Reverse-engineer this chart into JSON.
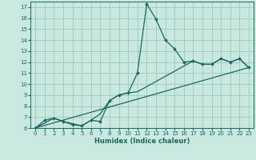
{
  "xlabel": "Humidex (Indice chaleur)",
  "bg_color": "#c8e8e0",
  "grid_color": "#a0c8c0",
  "line_color": "#1a6860",
  "xlim": [
    -0.5,
    23.5
  ],
  "ylim": [
    6,
    17.5
  ],
  "xticks": [
    0,
    1,
    2,
    3,
    4,
    5,
    6,
    7,
    8,
    9,
    10,
    11,
    12,
    13,
    14,
    15,
    16,
    17,
    18,
    19,
    20,
    21,
    22,
    23
  ],
  "yticks": [
    6,
    7,
    8,
    9,
    10,
    11,
    12,
    13,
    14,
    15,
    16,
    17
  ],
  "series_main": {
    "x": [
      0,
      1,
      2,
      3,
      4,
      5,
      6,
      7,
      8,
      9,
      10,
      11,
      12,
      13,
      14,
      15,
      16,
      17,
      18,
      19,
      20,
      21,
      22,
      23
    ],
    "y": [
      6.0,
      6.7,
      6.9,
      6.6,
      6.3,
      6.2,
      6.7,
      6.6,
      8.5,
      9.0,
      9.2,
      11.0,
      17.3,
      15.9,
      14.0,
      13.2,
      12.0,
      12.1,
      11.8,
      11.8,
      12.3,
      12.0,
      12.3,
      11.5
    ]
  },
  "series_smooth": {
    "x": [
      0,
      2,
      3,
      5,
      6,
      7,
      8,
      9,
      10,
      11,
      17,
      18,
      19,
      20,
      21,
      22,
      23
    ],
    "y": [
      6.0,
      6.9,
      6.6,
      6.2,
      6.7,
      7.3,
      8.5,
      9.0,
      9.2,
      9.3,
      12.1,
      11.8,
      11.8,
      12.3,
      12.0,
      12.3,
      11.5
    ]
  },
  "series_line": {
    "x": [
      0,
      23
    ],
    "y": [
      6.0,
      11.5
    ]
  }
}
